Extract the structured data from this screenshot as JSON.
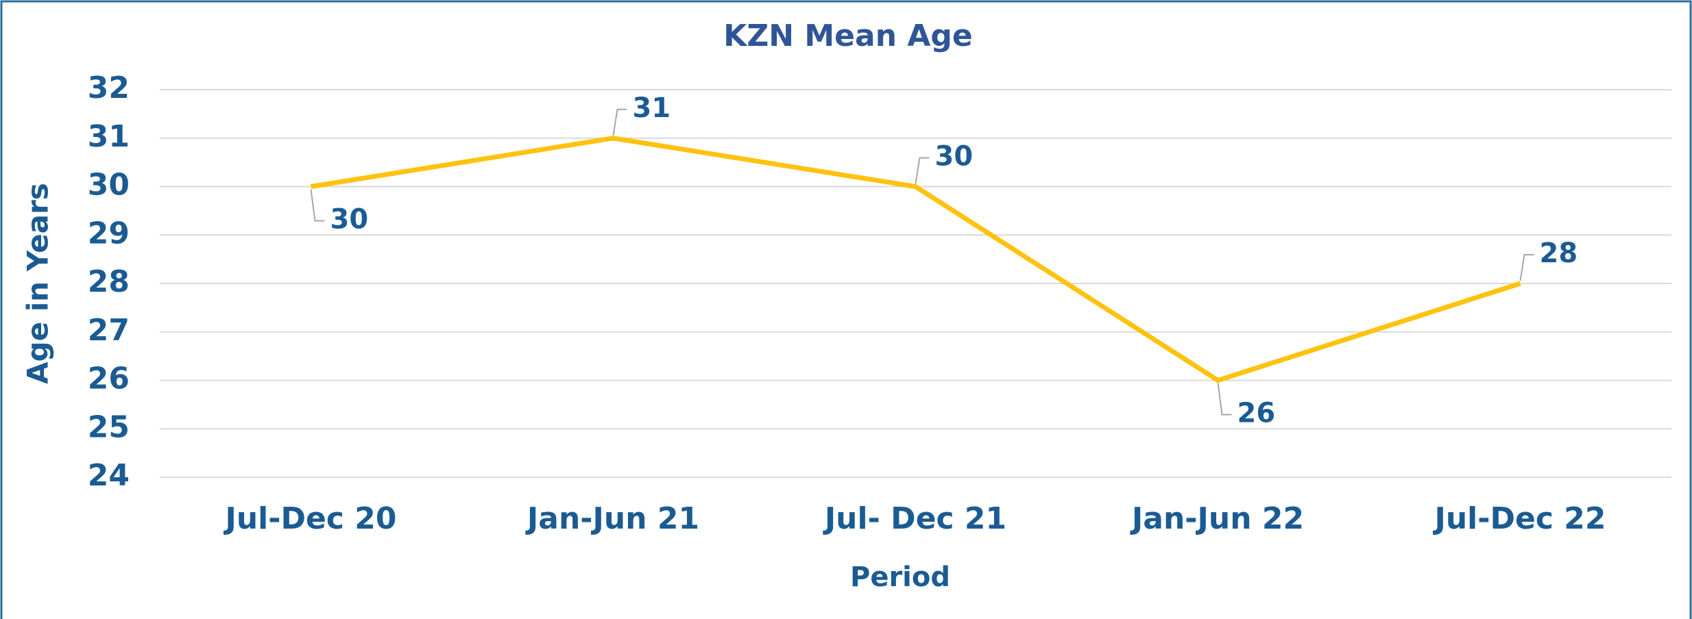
{
  "chart_data": {
    "type": "line",
    "title": "KZN Mean Age",
    "x_label": "Period",
    "y_label": "Age in Years",
    "categories": [
      "Jul-Dec 20",
      "Jan-Jun 21",
      "Jul- Dec 21",
      "Jan-Jun 22",
      "Jul-Dec 22"
    ],
    "series": [
      {
        "name": "Mean Age",
        "color": "#FFC20E",
        "values": [
          30,
          31,
          30,
          26,
          28
        ]
      }
    ],
    "ylim": [
      24,
      32
    ],
    "yticks": [
      24,
      25,
      26,
      27,
      28,
      29,
      30,
      31,
      32
    ],
    "grid": true,
    "legend": false
  }
}
